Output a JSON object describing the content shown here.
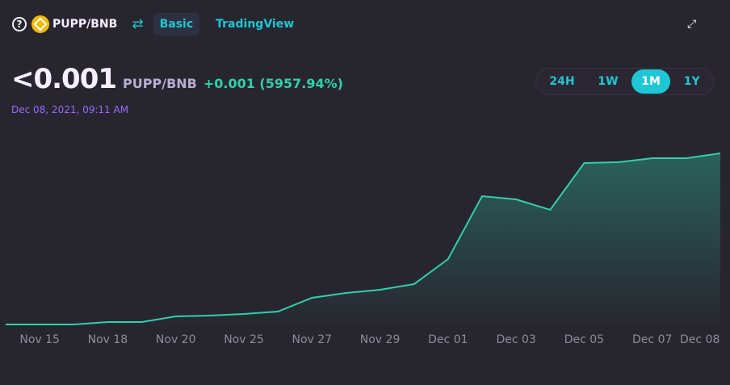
{
  "header": {
    "pair": "PUPP/BNB",
    "tabs": [
      {
        "label": "Basic",
        "active": true
      },
      {
        "label": "TradingView",
        "active": false
      }
    ]
  },
  "price": {
    "value": "<0.001",
    "symbol": "PUPP/BNB",
    "change": "+0.001 (5957.94%)",
    "date": "Dec 08, 2021, 09:11 AM"
  },
  "ranges": [
    {
      "label": "24H"
    },
    {
      "label": "1W"
    },
    {
      "label": "1M",
      "active": true
    },
    {
      "label": "1Y"
    }
  ],
  "colors": {
    "accent": "#1fc7d4",
    "line": "#31d0aa",
    "change": "#31d0aa",
    "date": "#9a6aff"
  },
  "chart_data": {
    "type": "area",
    "values": [
      3,
      3,
      3,
      6,
      6,
      13,
      14,
      16,
      19,
      36,
      42,
      46,
      53,
      84,
      162,
      158,
      145,
      203,
      204,
      209,
      209,
      215
    ],
    "xticks": [
      {
        "label": "Nov 15",
        "index": 1
      },
      {
        "label": "Nov 18",
        "index": 3
      },
      {
        "label": "Nov 20",
        "index": 5
      },
      {
        "label": "Nov 25",
        "index": 7
      },
      {
        "label": "Nov 27",
        "index": 9
      },
      {
        "label": "Nov 29",
        "index": 11
      },
      {
        "label": "Dec 01",
        "index": 13
      },
      {
        "label": "Dec 03",
        "index": 15
      },
      {
        "label": "Dec 05",
        "index": 17
      },
      {
        "label": "Dec 07",
        "index": 19
      },
      {
        "label": "Dec 08",
        "index": 20.4
      }
    ],
    "yaxis_visible": false,
    "grid": false
  }
}
